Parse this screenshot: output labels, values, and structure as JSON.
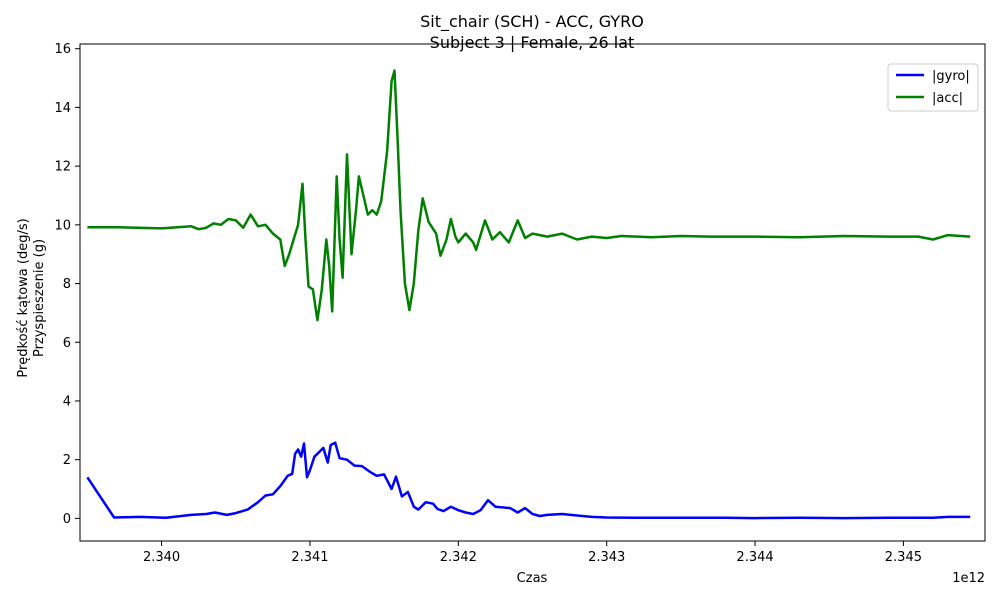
{
  "chart_data": {
    "type": "line",
    "title_lines": [
      "Sit_chair (SCH) - ACC, GYRO",
      "Subject 3 | Female, 26 lat"
    ],
    "xlabel": "Czas",
    "ylabel_lines": [
      "Prędkość kątowa (deg/s)",
      "Przyspieszenie (g)"
    ],
    "x_offset_label": "1e12",
    "xlim": [
      2.33945,
      2.34555
    ],
    "ylim": [
      -0.77,
      16.16
    ],
    "x_ticks": [
      2.34,
      2.341,
      2.342,
      2.343,
      2.344,
      2.345
    ],
    "x_tick_labels": [
      "2.340",
      "2.341",
      "2.342",
      "2.343",
      "2.344",
      "2.345"
    ],
    "y_ticks": [
      0,
      2,
      4,
      6,
      8,
      10,
      12,
      14,
      16
    ],
    "y_tick_labels": [
      "0",
      "2",
      "4",
      "6",
      "8",
      "10",
      "12",
      "14",
      "16"
    ],
    "legend_position": "top-right",
    "grid": false,
    "series": [
      {
        "name": "|gyro|",
        "color": "#0000ff",
        "points": [
          [
            2.3395,
            1.4
          ],
          [
            2.33968,
            0.03
          ],
          [
            2.33985,
            0.05
          ],
          [
            2.34003,
            0.02
          ],
          [
            2.3402,
            0.12
          ],
          [
            2.3403,
            0.15
          ],
          [
            2.34036,
            0.2
          ],
          [
            2.34044,
            0.12
          ],
          [
            2.3405,
            0.18
          ],
          [
            2.34058,
            0.3
          ],
          [
            2.34065,
            0.55
          ],
          [
            2.3407,
            0.78
          ],
          [
            2.34075,
            0.82
          ],
          [
            2.3408,
            1.1
          ],
          [
            2.34085,
            1.45
          ],
          [
            2.34088,
            1.52
          ],
          [
            2.3409,
            2.2
          ],
          [
            2.34092,
            2.35
          ],
          [
            2.34094,
            2.1
          ],
          [
            2.34096,
            2.55
          ],
          [
            2.34098,
            1.4
          ],
          [
            2.341,
            1.65
          ],
          [
            2.34103,
            2.1
          ],
          [
            2.34106,
            2.25
          ],
          [
            2.34109,
            2.4
          ],
          [
            2.34112,
            1.9
          ],
          [
            2.34114,
            2.5
          ],
          [
            2.34117,
            2.58
          ],
          [
            2.3412,
            2.05
          ],
          [
            2.34125,
            2.0
          ],
          [
            2.3413,
            1.8
          ],
          [
            2.34135,
            1.78
          ],
          [
            2.3414,
            1.6
          ],
          [
            2.34145,
            1.45
          ],
          [
            2.3415,
            1.5
          ],
          [
            2.34155,
            1.0
          ],
          [
            2.34158,
            1.42
          ],
          [
            2.34162,
            0.75
          ],
          [
            2.34166,
            0.9
          ],
          [
            2.3417,
            0.4
          ],
          [
            2.34173,
            0.3
          ],
          [
            2.34178,
            0.55
          ],
          [
            2.34183,
            0.5
          ],
          [
            2.34186,
            0.32
          ],
          [
            2.3419,
            0.25
          ],
          [
            2.34195,
            0.4
          ],
          [
            2.342,
            0.28
          ],
          [
            2.34205,
            0.2
          ],
          [
            2.3421,
            0.15
          ],
          [
            2.34215,
            0.28
          ],
          [
            2.3422,
            0.62
          ],
          [
            2.34225,
            0.4
          ],
          [
            2.34235,
            0.35
          ],
          [
            2.3424,
            0.2
          ],
          [
            2.34245,
            0.35
          ],
          [
            2.3425,
            0.15
          ],
          [
            2.34255,
            0.08
          ],
          [
            2.3426,
            0.12
          ],
          [
            2.3427,
            0.15
          ],
          [
            2.3428,
            0.1
          ],
          [
            2.3429,
            0.05
          ],
          [
            2.343,
            0.03
          ],
          [
            2.3432,
            0.02
          ],
          [
            2.3435,
            0.02
          ],
          [
            2.3438,
            0.02
          ],
          [
            2.344,
            0.01
          ],
          [
            2.3443,
            0.02
          ],
          [
            2.3446,
            0.01
          ],
          [
            2.3449,
            0.02
          ],
          [
            2.3452,
            0.02
          ],
          [
            2.3453,
            0.05
          ],
          [
            2.34545,
            0.05
          ]
        ]
      },
      {
        "name": "|acc|",
        "color": "#008000",
        "points": [
          [
            2.3395,
            9.92
          ],
          [
            2.3397,
            9.92
          ],
          [
            2.34,
            9.88
          ],
          [
            2.3402,
            9.95
          ],
          [
            2.34025,
            9.85
          ],
          [
            2.3403,
            9.9
          ],
          [
            2.34035,
            10.05
          ],
          [
            2.3404,
            10.0
          ],
          [
            2.34045,
            10.2
          ],
          [
            2.3405,
            10.15
          ],
          [
            2.34055,
            9.9
          ],
          [
            2.3406,
            10.35
          ],
          [
            2.34065,
            9.95
          ],
          [
            2.3407,
            10.0
          ],
          [
            2.34075,
            9.7
          ],
          [
            2.3408,
            9.5
          ],
          [
            2.34083,
            8.6
          ],
          [
            2.34086,
            9.0
          ],
          [
            2.34089,
            9.5
          ],
          [
            2.34092,
            10.0
          ],
          [
            2.34095,
            11.4
          ],
          [
            2.34097,
            9.5
          ],
          [
            2.34099,
            7.9
          ],
          [
            2.34102,
            7.8
          ],
          [
            2.34105,
            6.75
          ],
          [
            2.34108,
            7.8
          ],
          [
            2.34111,
            9.5
          ],
          [
            2.34113,
            8.6
          ],
          [
            2.34115,
            7.05
          ],
          [
            2.34118,
            11.65
          ],
          [
            2.3412,
            9.5
          ],
          [
            2.34122,
            8.2
          ],
          [
            2.34125,
            12.4
          ],
          [
            2.34128,
            9.0
          ],
          [
            2.34131,
            10.5
          ],
          [
            2.34133,
            11.65
          ],
          [
            2.34136,
            11.0
          ],
          [
            2.34139,
            10.35
          ],
          [
            2.34142,
            10.5
          ],
          [
            2.34145,
            10.35
          ],
          [
            2.34148,
            10.8
          ],
          [
            2.34152,
            12.5
          ],
          [
            2.34155,
            14.9
          ],
          [
            2.34157,
            15.25
          ],
          [
            2.34159,
            13.0
          ],
          [
            2.34161,
            10.5
          ],
          [
            2.34164,
            8.0
          ],
          [
            2.34167,
            7.1
          ],
          [
            2.3417,
            8.0
          ],
          [
            2.34173,
            9.8
          ],
          [
            2.34176,
            10.9
          ],
          [
            2.3418,
            10.1
          ],
          [
            2.34185,
            9.7
          ],
          [
            2.34188,
            8.95
          ],
          [
            2.34192,
            9.5
          ],
          [
            2.34195,
            10.2
          ],
          [
            2.34198,
            9.6
          ],
          [
            2.342,
            9.4
          ],
          [
            2.34205,
            9.7
          ],
          [
            2.3421,
            9.4
          ],
          [
            2.34212,
            9.15
          ],
          [
            2.34218,
            10.15
          ],
          [
            2.34223,
            9.5
          ],
          [
            2.34228,
            9.75
          ],
          [
            2.34234,
            9.4
          ],
          [
            2.3424,
            10.15
          ],
          [
            2.34245,
            9.55
          ],
          [
            2.3425,
            9.7
          ],
          [
            2.3426,
            9.6
          ],
          [
            2.3427,
            9.7
          ],
          [
            2.3428,
            9.5
          ],
          [
            2.3429,
            9.6
          ],
          [
            2.343,
            9.55
          ],
          [
            2.3431,
            9.62
          ],
          [
            2.3433,
            9.58
          ],
          [
            2.3435,
            9.62
          ],
          [
            2.3437,
            9.6
          ],
          [
            2.344,
            9.6
          ],
          [
            2.3443,
            9.58
          ],
          [
            2.3446,
            9.62
          ],
          [
            2.3449,
            9.6
          ],
          [
            2.3451,
            9.6
          ],
          [
            2.3452,
            9.5
          ],
          [
            2.3453,
            9.65
          ],
          [
            2.34545,
            9.6
          ]
        ]
      }
    ]
  }
}
